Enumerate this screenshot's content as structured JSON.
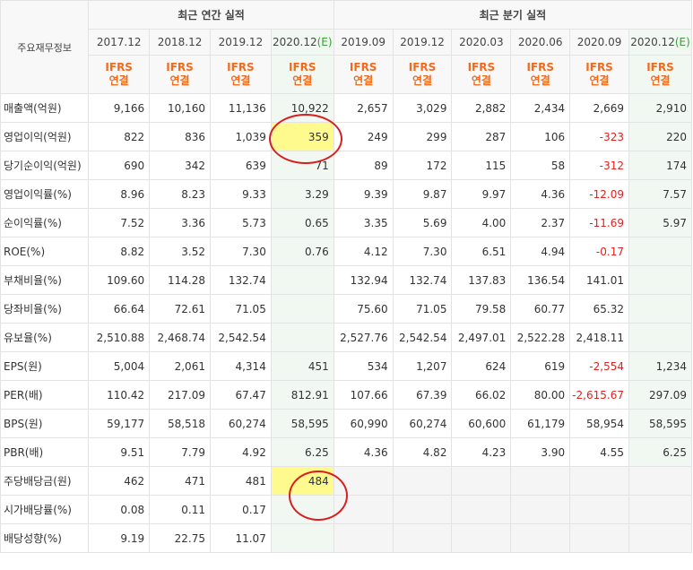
{
  "header": {
    "row_label": "주요재무정보",
    "annual_group": "최근 연간 실적",
    "quarter_group": "최근 분기 실적",
    "annual_periods": [
      "2017.12",
      "2018.12",
      "2019.12",
      "2020.12"
    ],
    "annual_estimate_mark": "(E)",
    "quarter_periods": [
      "2019.09",
      "2019.12",
      "2020.03",
      "2020.06",
      "2020.09",
      "2020.12"
    ],
    "quarter_estimate_mark": "(E)",
    "ifrs_line1": "IFRS",
    "ifrs_line2": "연결"
  },
  "rows": [
    {
      "label": "매출액(억원)",
      "values": [
        "9,166",
        "10,160",
        "11,136",
        "10,922",
        "2,657",
        "3,029",
        "2,882",
        "2,434",
        "2,669",
        "2,910"
      ]
    },
    {
      "label": "영업이익(억원)",
      "values": [
        "822",
        "836",
        "1,039",
        "359",
        "249",
        "299",
        "287",
        "106",
        "-323",
        "220"
      ]
    },
    {
      "label": "당기순이익(억원)",
      "values": [
        "690",
        "342",
        "639",
        "71",
        "89",
        "172",
        "115",
        "58",
        "-312",
        "174"
      ]
    },
    {
      "label": "영업이익률(%)",
      "values": [
        "8.96",
        "8.23",
        "9.33",
        "3.29",
        "9.39",
        "9.87",
        "9.97",
        "4.36",
        "-12.09",
        "7.57"
      ]
    },
    {
      "label": "순이익률(%)",
      "values": [
        "7.52",
        "3.36",
        "5.73",
        "0.65",
        "3.35",
        "5.69",
        "4.00",
        "2.37",
        "-11.69",
        "5.97"
      ]
    },
    {
      "label": "ROE(%)",
      "values": [
        "8.82",
        "3.52",
        "7.30",
        "0.76",
        "4.12",
        "7.30",
        "6.51",
        "4.94",
        "-0.17",
        ""
      ]
    },
    {
      "label": "부채비율(%)",
      "values": [
        "109.60",
        "114.28",
        "132.74",
        "",
        "132.94",
        "132.74",
        "137.83",
        "136.54",
        "141.01",
        ""
      ]
    },
    {
      "label": "당좌비율(%)",
      "values": [
        "66.64",
        "72.61",
        "71.05",
        "",
        "75.60",
        "71.05",
        "79.58",
        "60.77",
        "65.32",
        ""
      ]
    },
    {
      "label": "유보율(%)",
      "values": [
        "2,510.88",
        "2,468.74",
        "2,542.54",
        "",
        "2,527.76",
        "2,542.54",
        "2,497.01",
        "2,522.28",
        "2,418.11",
        ""
      ]
    },
    {
      "label": "EPS(원)",
      "values": [
        "5,004",
        "2,061",
        "4,314",
        "451",
        "534",
        "1,207",
        "624",
        "619",
        "-2,554",
        "1,234"
      ]
    },
    {
      "label": "PER(배)",
      "values": [
        "110.42",
        "217.09",
        "67.47",
        "812.91",
        "107.66",
        "67.39",
        "66.02",
        "80.00",
        "-2,615.67",
        "297.09"
      ]
    },
    {
      "label": "BPS(원)",
      "values": [
        "59,177",
        "58,518",
        "60,274",
        "58,595",
        "60,990",
        "60,274",
        "60,600",
        "61,179",
        "58,954",
        "58,595"
      ]
    },
    {
      "label": "PBR(배)",
      "values": [
        "9.51",
        "7.79",
        "4.92",
        "6.25",
        "4.36",
        "4.82",
        "4.23",
        "3.90",
        "4.55",
        "6.25"
      ]
    },
    {
      "label": "주당배당금(원)",
      "values": [
        "462",
        "471",
        "481",
        "484",
        "",
        "",
        "",
        "",
        "",
        ""
      ]
    },
    {
      "label": "시가배당률(%)",
      "values": [
        "0.08",
        "0.11",
        "0.17",
        "",
        "",
        "",
        "",
        "",
        "",
        ""
      ]
    },
    {
      "label": "배당성향(%)",
      "values": [
        "9.19",
        "22.75",
        "11.07",
        "",
        "",
        "",
        "",
        "",
        "",
        ""
      ]
    }
  ],
  "colors": {
    "negative": "#e0211f",
    "ifrs": "#f26a1b",
    "highlight": "#fefa8e",
    "circle": "#d81e1e"
  }
}
